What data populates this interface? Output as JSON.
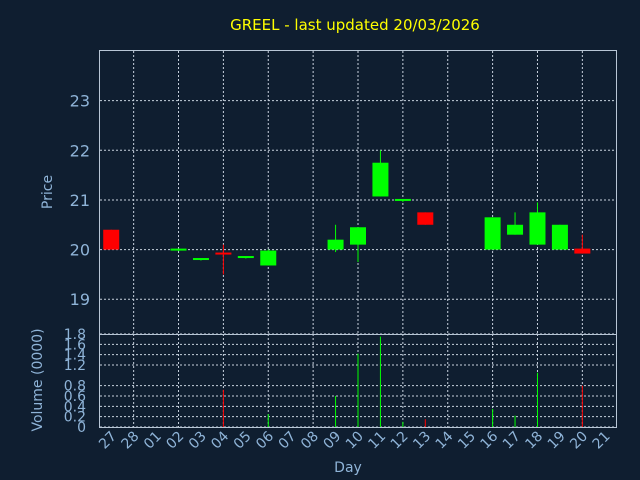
{
  "chart_data": {
    "type": "candlestick",
    "title": "GREEL - last updated 20/03/2026",
    "xlabel": "Day",
    "ylabel_price": "Price",
    "ylabel_volume": "Volume (0000)",
    "x_ticks": [
      "27",
      "28",
      "01",
      "02",
      "03",
      "04",
      "05",
      "06",
      "07",
      "08",
      "09",
      "10",
      "11",
      "12",
      "13",
      "14",
      "15",
      "16",
      "17",
      "18",
      "19",
      "20",
      "21"
    ],
    "price_yticks": [
      19,
      20,
      21,
      22,
      23
    ],
    "price_ylim": [
      18.3,
      24.0
    ],
    "volume_yticks": [
      0,
      0.2,
      0.4,
      0.6,
      0.8,
      1.2,
      1.4,
      1.6,
      1.8
    ],
    "volume_ylim": [
      0,
      1.8
    ],
    "up_color": "#00ff00",
    "down_color": "#ff0000",
    "grid": true,
    "candles": [
      {
        "day": "27",
        "open": 20.4,
        "high": 20.4,
        "low": 20.0,
        "close": 20.0,
        "volume": 0
      },
      {
        "day": "02",
        "open": 19.99,
        "high": 20.01,
        "low": 19.97,
        "close": 20.0,
        "volume": 0
      },
      {
        "day": "03",
        "open": 19.8,
        "high": 19.82,
        "low": 19.78,
        "close": 19.81,
        "volume": 0
      },
      {
        "day": "04",
        "open": 19.92,
        "high": 20.1,
        "low": 19.5,
        "close": 19.88,
        "volume": 0.72
      },
      {
        "day": "05",
        "open": 19.83,
        "high": 19.85,
        "low": 19.82,
        "close": 19.85,
        "volume": 0
      },
      {
        "day": "06",
        "open": 19.68,
        "high": 20.0,
        "low": 19.68,
        "close": 19.98,
        "volume": 0.25
      },
      {
        "day": "09",
        "open": 20.0,
        "high": 20.5,
        "low": 19.95,
        "close": 20.2,
        "volume": 0.6
      },
      {
        "day": "10",
        "open": 20.1,
        "high": 20.45,
        "low": 19.75,
        "close": 20.45,
        "volume": 1.42
      },
      {
        "day": "11",
        "open": 21.07,
        "high": 22.0,
        "low": 21.07,
        "close": 21.75,
        "volume": 1.75
      },
      {
        "day": "12",
        "open": 20.98,
        "high": 21.0,
        "low": 20.96,
        "close": 21.0,
        "volume": 0.1
      },
      {
        "day": "13",
        "open": 20.75,
        "high": 20.75,
        "low": 20.5,
        "close": 20.5,
        "volume": 0.15
      },
      {
        "day": "16",
        "open": 20.0,
        "high": 20.65,
        "low": 20.0,
        "close": 20.65,
        "volume": 0.35
      },
      {
        "day": "17",
        "open": 20.3,
        "high": 20.75,
        "low": 20.3,
        "close": 20.5,
        "volume": 0.22
      },
      {
        "day": "18",
        "open": 20.1,
        "high": 20.95,
        "low": 20.1,
        "close": 20.75,
        "volume": 1.05
      },
      {
        "day": "19",
        "open": 20.0,
        "high": 20.5,
        "low": 20.0,
        "close": 20.5,
        "volume": 0
      },
      {
        "day": "20",
        "open": 20.02,
        "high": 20.3,
        "low": 19.92,
        "close": 19.92,
        "volume": 0.8
      }
    ]
  }
}
